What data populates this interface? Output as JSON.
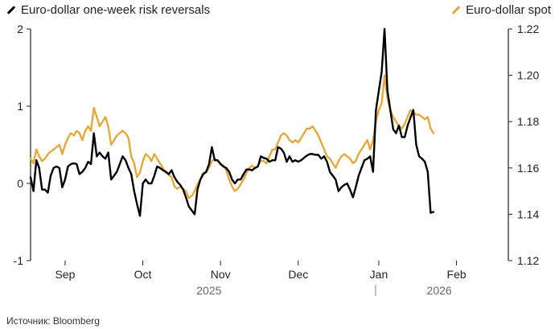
{
  "legend": {
    "left": {
      "label": "Euro-dollar one-week risk reversals",
      "color": "#000000"
    },
    "right": {
      "label": "Euro-dollar spot",
      "color": "#e7a83b"
    }
  },
  "source": "Источник: Bloomberg",
  "chart_data": {
    "type": "line",
    "title": "",
    "xlabel": "",
    "x_range": [
      0,
      166
    ],
    "x_ticks": [
      {
        "label": "Sep",
        "x": 12
      },
      {
        "label": "Oct",
        "x": 39
      },
      {
        "label": "Nov",
        "x": 66
      },
      {
        "label": "Dec",
        "x": 93
      },
      {
        "label": "Jan",
        "x": 121
      },
      {
        "label": "Feb",
        "x": 148
      }
    ],
    "years": [
      {
        "label": "2025",
        "x": 62
      },
      {
        "label": "2026",
        "x": 142
      }
    ],
    "year_divider_x": 121,
    "y_left": {
      "label": "",
      "range": [
        -1,
        2
      ],
      "ticks": [
        "2",
        "1",
        "0",
        "-1"
      ]
    },
    "y_right": {
      "label": "",
      "range": [
        1.12,
        1.22
      ],
      "ticks": [
        "1.22",
        "1.20",
        "1.18",
        "1.16",
        "1.14",
        "1.12"
      ]
    },
    "series": [
      {
        "name": "Euro-dollar one-week risk reversals",
        "axis": "left",
        "color": "#000000",
        "points": [
          [
            0,
            0.08
          ],
          [
            1,
            -0.1
          ],
          [
            2,
            0.3
          ],
          [
            3,
            0.2
          ],
          [
            4,
            -0.08
          ],
          [
            5,
            -0.08
          ],
          [
            6,
            -0.12
          ],
          [
            7,
            0.1
          ],
          [
            8,
            0.2
          ],
          [
            9,
            0.22
          ],
          [
            10,
            0.2
          ],
          [
            11,
            -0.05
          ],
          [
            12,
            0.05
          ],
          [
            13,
            0.22
          ],
          [
            14,
            0.25
          ],
          [
            15,
            0.26
          ],
          [
            16,
            0.25
          ],
          [
            17,
            0.12
          ],
          [
            18,
            0.15
          ],
          [
            19,
            0.2
          ],
          [
            20,
            0.28
          ],
          [
            21,
            0.25
          ],
          [
            22,
            0.65
          ],
          [
            23,
            0.35
          ],
          [
            24,
            0.4
          ],
          [
            25,
            0.35
          ],
          [
            26,
            0.32
          ],
          [
            27,
            0.4
          ],
          [
            28,
            0.05
          ],
          [
            29,
            0.1
          ],
          [
            30,
            0.15
          ],
          [
            31,
            0.25
          ],
          [
            32,
            0.35
          ],
          [
            33,
            0.3
          ],
          [
            34,
            0.2
          ],
          [
            35,
            0.12
          ],
          [
            36,
            -0.1
          ],
          [
            37,
            -0.27
          ],
          [
            38,
            -0.42
          ],
          [
            39,
            0.0
          ],
          [
            40,
            0.05
          ],
          [
            41,
            0.0
          ],
          [
            42,
            0.0
          ],
          [
            43,
            0.1
          ],
          [
            44,
            0.22
          ],
          [
            45,
            0.2
          ],
          [
            46,
            0.17
          ],
          [
            47,
            0.15
          ],
          [
            48,
            0.12
          ],
          [
            49,
            0.17
          ],
          [
            50,
            0.08
          ],
          [
            51,
            0.02
          ],
          [
            52,
            -0.02
          ],
          [
            53,
            -0.08
          ],
          [
            54,
            -0.18
          ],
          [
            55,
            -0.3
          ],
          [
            56,
            -0.35
          ],
          [
            57,
            -0.4
          ],
          [
            58,
            -0.08
          ],
          [
            59,
            0.05
          ],
          [
            60,
            0.12
          ],
          [
            61,
            0.15
          ],
          [
            62,
            0.25
          ],
          [
            63,
            0.47
          ],
          [
            64,
            0.3
          ],
          [
            65,
            0.3
          ],
          [
            66,
            0.25
          ],
          [
            67,
            0.22
          ],
          [
            68,
            0.2
          ],
          [
            69,
            0.15
          ],
          [
            70,
            0.05
          ],
          [
            71,
            0.0
          ],
          [
            72,
            0.05
          ],
          [
            73,
            0.05
          ],
          [
            74,
            0.12
          ],
          [
            75,
            0.18
          ],
          [
            76,
            0.18
          ],
          [
            77,
            0.17
          ],
          [
            78,
            0.2
          ],
          [
            79,
            0.22
          ],
          [
            80,
            0.35
          ],
          [
            81,
            0.33
          ],
          [
            82,
            0.32
          ],
          [
            83,
            0.28
          ],
          [
            84,
            0.3
          ],
          [
            85,
            0.3
          ],
          [
            86,
            0.47
          ],
          [
            87,
            0.45
          ],
          [
            88,
            0.4
          ],
          [
            89,
            0.28
          ],
          [
            90,
            0.35
          ],
          [
            91,
            0.28
          ],
          [
            92,
            0.3
          ],
          [
            93,
            0.28
          ],
          [
            94,
            0.3
          ],
          [
            95,
            0.33
          ],
          [
            96,
            0.36
          ],
          [
            97,
            0.38
          ],
          [
            98,
            0.38
          ],
          [
            99,
            0.37
          ],
          [
            100,
            0.37
          ],
          [
            101,
            0.32
          ],
          [
            102,
            0.35
          ],
          [
            103,
            0.28
          ],
          [
            104,
            0.15
          ],
          [
            105,
            0.1
          ],
          [
            106,
            0.05
          ],
          [
            107,
            -0.1
          ],
          [
            108,
            -0.05
          ],
          [
            109,
            -0.02
          ],
          [
            110,
            0.0
          ],
          [
            111,
            -0.08
          ],
          [
            112,
            -0.18
          ],
          [
            113,
            -0.05
          ],
          [
            114,
            0.1
          ],
          [
            115,
            0.2
          ],
          [
            116,
            0.3
          ],
          [
            117,
            0.32
          ],
          [
            118,
            0.35
          ],
          [
            119,
            0.15
          ],
          [
            120,
            0.95
          ],
          [
            121,
            1.2
          ],
          [
            122,
            1.45
          ],
          [
            123,
            2.0
          ],
          [
            124,
            1.2
          ],
          [
            125,
            0.95
          ],
          [
            126,
            0.7
          ],
          [
            127,
            0.65
          ],
          [
            128,
            0.75
          ],
          [
            129,
            0.6
          ],
          [
            130,
            0.6
          ],
          [
            131,
            0.75
          ],
          [
            132,
            0.85
          ],
          [
            133,
            0.95
          ],
          [
            134,
            0.5
          ],
          [
            135,
            0.35
          ],
          [
            136,
            0.32
          ],
          [
            137,
            0.28
          ],
          [
            138,
            0.15
          ],
          [
            139,
            -0.38
          ],
          [
            140,
            -0.37
          ]
        ]
      },
      {
        "name": "Euro-dollar spot",
        "axis": "right",
        "color": "#e7a83b",
        "points": [
          [
            0,
            1.164
          ],
          [
            1,
            1.162
          ],
          [
            2,
            1.168
          ],
          [
            3,
            1.165
          ],
          [
            4,
            1.163
          ],
          [
            5,
            1.164
          ],
          [
            6,
            1.166
          ],
          [
            7,
            1.167
          ],
          [
            8,
            1.168
          ],
          [
            9,
            1.169
          ],
          [
            10,
            1.17
          ],
          [
            11,
            1.166
          ],
          [
            12,
            1.17
          ],
          [
            13,
            1.173
          ],
          [
            14,
            1.175
          ],
          [
            15,
            1.174
          ],
          [
            16,
            1.176
          ],
          [
            17,
            1.175
          ],
          [
            18,
            1.172
          ],
          [
            19,
            1.176
          ],
          [
            20,
            1.178
          ],
          [
            21,
            1.176
          ],
          [
            22,
            1.186
          ],
          [
            23,
            1.182
          ],
          [
            24,
            1.178
          ],
          [
            25,
            1.18
          ],
          [
            26,
            1.182
          ],
          [
            27,
            1.178
          ],
          [
            28,
            1.17
          ],
          [
            29,
            1.172
          ],
          [
            30,
            1.174
          ],
          [
            31,
            1.175
          ],
          [
            32,
            1.176
          ],
          [
            33,
            1.175
          ],
          [
            34,
            1.173
          ],
          [
            35,
            1.165
          ],
          [
            36,
            1.162
          ],
          [
            37,
            1.156
          ],
          [
            38,
            1.158
          ],
          [
            39,
            1.163
          ],
          [
            40,
            1.166
          ],
          [
            41,
            1.165
          ],
          [
            42,
            1.163
          ],
          [
            43,
            1.166
          ],
          [
            44,
            1.164
          ],
          [
            45,
            1.162
          ],
          [
            46,
            1.16
          ],
          [
            47,
            1.158
          ],
          [
            48,
            1.157
          ],
          [
            49,
            1.156
          ],
          [
            50,
            1.152
          ],
          [
            51,
            1.151
          ],
          [
            52,
            1.152
          ],
          [
            53,
            1.151
          ],
          [
            54,
            1.15
          ],
          [
            55,
            1.147
          ],
          [
            56,
            1.148
          ],
          [
            57,
            1.15
          ],
          [
            58,
            1.153
          ],
          [
            59,
            1.155
          ],
          [
            60,
            1.158
          ],
          [
            61,
            1.158
          ],
          [
            62,
            1.16
          ],
          [
            63,
            1.163
          ],
          [
            64,
            1.164
          ],
          [
            65,
            1.163
          ],
          [
            66,
            1.162
          ],
          [
            67,
            1.161
          ],
          [
            68,
            1.159
          ],
          [
            69,
            1.155
          ],
          [
            70,
            1.152
          ],
          [
            71,
            1.15
          ],
          [
            72,
            1.151
          ],
          [
            73,
            1.153
          ],
          [
            74,
            1.155
          ],
          [
            75,
            1.158
          ],
          [
            76,
            1.16
          ],
          [
            77,
            1.161
          ],
          [
            78,
            1.16
          ],
          [
            79,
            1.161
          ],
          [
            80,
            1.163
          ],
          [
            81,
            1.163
          ],
          [
            82,
            1.162
          ],
          [
            83,
            1.165
          ],
          [
            84,
            1.168
          ],
          [
            85,
            1.168
          ],
          [
            86,
            1.171
          ],
          [
            87,
            1.174
          ],
          [
            88,
            1.175
          ],
          [
            89,
            1.174
          ],
          [
            90,
            1.172
          ],
          [
            91,
            1.171
          ],
          [
            92,
            1.172
          ],
          [
            93,
            1.171
          ],
          [
            94,
            1.173
          ],
          [
            95,
            1.175
          ],
          [
            96,
            1.177
          ],
          [
            97,
            1.177
          ],
          [
            98,
            1.178
          ],
          [
            99,
            1.176
          ],
          [
            100,
            1.174
          ],
          [
            101,
            1.171
          ],
          [
            102,
            1.168
          ],
          [
            103,
            1.165
          ],
          [
            104,
            1.164
          ],
          [
            105,
            1.162
          ],
          [
            106,
            1.16
          ],
          [
            107,
            1.163
          ],
          [
            108,
            1.165
          ],
          [
            109,
            1.166
          ],
          [
            110,
            1.165
          ],
          [
            111,
            1.164
          ],
          [
            112,
            1.162
          ],
          [
            113,
            1.163
          ],
          [
            114,
            1.166
          ],
          [
            115,
            1.168
          ],
          [
            116,
            1.17
          ],
          [
            117,
            1.172
          ],
          [
            118,
            1.168
          ],
          [
            119,
            1.172
          ],
          [
            120,
            1.18
          ],
          [
            121,
            1.185
          ],
          [
            122,
            1.188
          ],
          [
            123,
            1.2
          ],
          [
            124,
            1.19
          ],
          [
            125,
            1.185
          ],
          [
            126,
            1.182
          ],
          [
            127,
            1.18
          ],
          [
            128,
            1.178
          ],
          [
            129,
            1.177
          ],
          [
            130,
            1.179
          ],
          [
            131,
            1.182
          ],
          [
            132,
            1.185
          ],
          [
            133,
            1.184
          ],
          [
            134,
            1.183
          ],
          [
            135,
            1.183
          ],
          [
            136,
            1.182
          ],
          [
            137,
            1.181
          ],
          [
            138,
            1.182
          ],
          [
            139,
            1.177
          ],
          [
            140,
            1.175
          ]
        ]
      }
    ]
  }
}
